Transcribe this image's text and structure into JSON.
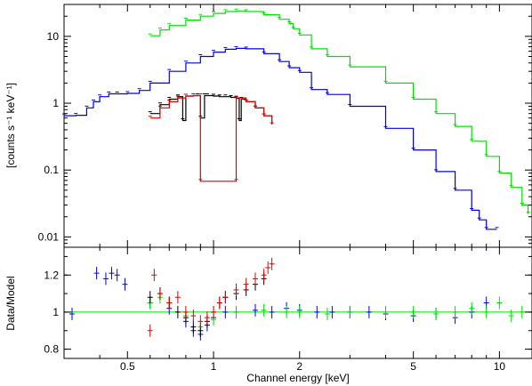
{
  "chart_data": [
    {
      "type": "line",
      "panel": "spectrum",
      "xscale": "log",
      "yscale": "log",
      "xlim": [
        0.3,
        13.0
      ],
      "ylim": [
        0.007,
        30
      ],
      "ylabel": "[counts s⁻¹ keV⁻¹]",
      "yticks": [
        0.01,
        0.1,
        1,
        10
      ],
      "yticklabels": [
        "0.01",
        "0.1",
        "1",
        "10"
      ],
      "series": [
        {
          "color": "#00e000",
          "x": [
            0.6,
            0.65,
            0.7,
            0.8,
            0.9,
            1.0,
            1.1,
            1.2,
            1.3,
            1.5,
            1.7,
            1.84,
            1.9,
            2.0,
            2.2,
            2.5,
            3.0,
            4.0,
            5.0,
            6.0,
            7.0,
            8.0,
            9.0,
            10.0,
            11.0,
            12.0,
            12.6
          ],
          "y": [
            10.2,
            12.5,
            14.5,
            17.5,
            20.0,
            22.0,
            23.5,
            24.0,
            23.5,
            21.0,
            18.0,
            15.5,
            13.0,
            10.5,
            6.5,
            5.0,
            3.5,
            2.0,
            1.15,
            0.7,
            0.45,
            0.27,
            0.16,
            0.09,
            0.055,
            0.03,
            0.022
          ]
        },
        {
          "color": "#0000e0",
          "x": [
            0.3,
            0.33,
            0.36,
            0.38,
            0.4,
            0.43,
            0.46,
            0.5,
            0.55,
            0.6,
            0.7,
            0.8,
            0.9,
            1.0,
            1.1,
            1.2,
            1.3,
            1.5,
            1.7,
            1.84,
            2.0,
            2.2,
            2.5,
            3.0,
            4.0,
            5.0,
            6.0,
            7.0,
            8.0,
            8.5,
            9.0,
            9.8
          ],
          "y": [
            0.65,
            0.66,
            0.85,
            1.05,
            1.25,
            1.38,
            1.38,
            1.4,
            1.55,
            2.0,
            3.0,
            4.0,
            5.0,
            5.8,
            6.4,
            6.6,
            6.5,
            5.5,
            4.2,
            3.4,
            2.9,
            1.6,
            1.35,
            0.9,
            0.42,
            0.2,
            0.095,
            0.05,
            0.025,
            0.018,
            0.013,
            0.013
          ]
        },
        {
          "color": "#000000",
          "x": [
            0.6,
            0.65,
            0.7,
            0.75,
            0.78,
            0.8,
            0.85,
            0.88,
            0.9,
            0.93,
            0.95,
            1.0,
            1.05,
            1.1,
            1.15,
            1.2,
            1.23,
            1.25,
            1.3,
            1.4,
            1.5,
            1.6
          ],
          "y": [
            0.7,
            0.95,
            1.15,
            1.25,
            0.55,
            1.28,
            1.3,
            1.3,
            0.6,
            1.3,
            1.3,
            1.28,
            1.25,
            1.25,
            1.22,
            1.18,
            0.55,
            1.15,
            1.05,
            0.85,
            0.65,
            0.48
          ]
        },
        {
          "color": "#e00000",
          "x": [
            0.6,
            0.65,
            0.7,
            0.75,
            0.8,
            0.85,
            0.9,
            0.9,
            1.2,
            1.2,
            1.3,
            1.4,
            1.5,
            1.6
          ],
          "y": [
            0.6,
            0.85,
            1.05,
            1.2,
            1.28,
            1.3,
            1.3,
            0.068,
            0.068,
            1.2,
            1.05,
            0.85,
            0.65,
            0.48
          ]
        }
      ]
    },
    {
      "type": "scatter",
      "panel": "ratio",
      "xscale": "log",
      "xlim": [
        0.3,
        13.0
      ],
      "ylim": [
        0.75,
        1.35
      ],
      "xlabel": "Channel energy [keV]",
      "ylabel": "Data/Model",
      "xticks": [
        0.5,
        1,
        2,
        5,
        10
      ],
      "xticklabels": [
        "0.5",
        "1",
        "2",
        "5",
        "10"
      ],
      "yticks": [
        0.8,
        1,
        1.2
      ],
      "yticklabels": [
        "0.8",
        "1",
        "1.2"
      ],
      "reference_line": {
        "y": 1,
        "color": "#00e000"
      },
      "series": [
        {
          "color": "#0000e0",
          "x": [
            0.32,
            0.39,
            0.42,
            0.44,
            0.46,
            0.49,
            0.6,
            0.7,
            0.8,
            0.85,
            0.9,
            0.95,
            1.0,
            1.1,
            1.2,
            1.4,
            1.6,
            1.8,
            2.0,
            2.3,
            2.6,
            3.0,
            3.5,
            4.0,
            5.0,
            6.0,
            7.0,
            8.0,
            9.0
          ],
          "y": [
            0.99,
            1.21,
            1.18,
            1.21,
            1.2,
            1.15,
            1.05,
            1.02,
            0.95,
            0.9,
            0.88,
            0.93,
            0.97,
            1.0,
            1.0,
            1.01,
            1.0,
            1.02,
            1.01,
            1.0,
            1.0,
            1.0,
            1.0,
            0.99,
            0.98,
            0.99,
            0.97,
            1.0,
            1.05
          ]
        },
        {
          "color": "#00e000",
          "x": [
            0.6,
            0.65,
            0.7,
            0.8,
            0.9,
            1.0,
            1.2,
            1.5,
            1.8,
            2.0,
            2.5,
            3.0,
            4.0,
            5.0,
            6.0,
            7.0,
            8.0,
            9.0,
            10.0,
            11.0,
            12.0
          ],
          "y": [
            1.05,
            1.08,
            1.05,
            0.98,
            0.92,
            0.96,
            1.0,
            1.01,
            1.0,
            1.0,
            0.99,
            1.0,
            1.0,
            1.0,
            0.99,
            1.0,
            1.02,
            1.0,
            1.05,
            0.98,
            1.0
          ]
        },
        {
          "color": "#000000",
          "x": [
            0.6,
            0.65,
            0.7,
            0.75,
            0.8,
            0.85,
            0.9,
            0.95,
            1.0,
            1.05,
            1.1,
            1.2,
            1.3,
            1.4,
            1.5
          ],
          "y": [
            1.08,
            1.1,
            1.05,
            1.0,
            0.97,
            0.92,
            0.9,
            0.95,
            1.0,
            1.05,
            1.08,
            1.1,
            1.12,
            1.15,
            1.18
          ]
        },
        {
          "color": "#e00000",
          "x": [
            0.6,
            0.62,
            0.65,
            0.7,
            0.75,
            0.8,
            0.85,
            0.9,
            0.95,
            1.0,
            1.05,
            1.1,
            1.2,
            1.3,
            1.4,
            1.5,
            1.55,
            1.6
          ],
          "y": [
            0.9,
            1.2,
            1.1,
            1.05,
            1.08,
            1.0,
            0.98,
            0.95,
            0.97,
            1.0,
            1.05,
            1.08,
            1.12,
            1.15,
            1.18,
            1.2,
            1.24,
            1.26
          ]
        }
      ]
    }
  ]
}
